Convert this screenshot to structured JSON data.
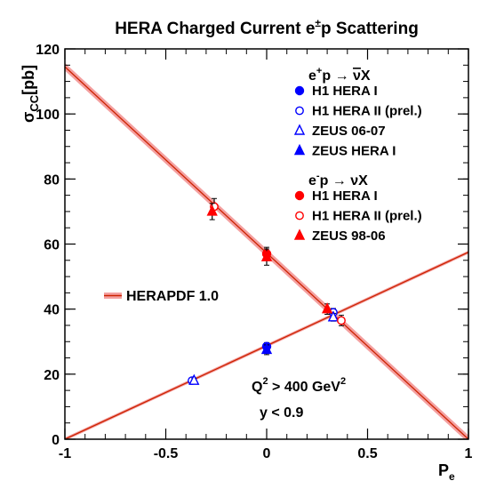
{
  "chart_data": {
    "type": "scatter",
    "title_main": "HERA Charged Current e",
    "title_sup": "±",
    "title_tail": "p Scattering",
    "xlabel": "P",
    "xlabel_sub": "e",
    "ylabel": "σ",
    "ylabel_sub": "CC",
    "ylabel_unit": "[pb]",
    "xlim": [
      -1,
      1
    ],
    "ylim": [
      0,
      120
    ],
    "x_ticks": [
      -1,
      -0.5,
      0,
      0.5,
      1
    ],
    "x_tick_labels": [
      "-1",
      "-0.5",
      "0",
      "0.5",
      "1"
    ],
    "y_ticks": [
      0,
      20,
      40,
      60,
      80,
      100,
      120
    ],
    "y_tick_labels": [
      "0",
      "20",
      "40",
      "60",
      "80",
      "100",
      "120"
    ],
    "grid": false,
    "legend_position": "top-right",
    "legend_groups": [
      {
        "header_pre": "e",
        "header_sup": "+",
        "header_post": "p → ",
        "header_nu": "ν",
        "header_nu_bar": true,
        "header_tail": "X"
      },
      {
        "header_pre": "e",
        "header_sup": "-",
        "header_post": "p → ",
        "header_nu": "ν",
        "header_nu_bar": false,
        "header_tail": "X"
      }
    ],
    "series": [
      {
        "name": "H1 HERA I",
        "group": 0,
        "color": "#0000ff",
        "marker": "circle-filled",
        "points": [
          {
            "x": 0.0,
            "y": 28.5,
            "err": 1.2
          }
        ]
      },
      {
        "name": "H1 HERA II (prel.)",
        "group": 0,
        "color": "#0000ff",
        "marker": "circle-open",
        "points": [
          {
            "x": -0.37,
            "y": 18.0,
            "err": 0.8
          },
          {
            "x": 0.33,
            "y": 39.0,
            "err": 1.2
          }
        ]
      },
      {
        "name": "ZEUS 06-07",
        "group": 0,
        "color": "#0000ff",
        "marker": "triangle-open",
        "points": [
          {
            "x": -0.36,
            "y": 18.0,
            "err": 0.8
          },
          {
            "x": 0.33,
            "y": 37.5,
            "err": 1.2
          }
        ]
      },
      {
        "name": "ZEUS HERA I",
        "group": 0,
        "color": "#0000ff",
        "marker": "triangle-filled",
        "points": [
          {
            "x": 0.0,
            "y": 27.5,
            "err": 1.5
          }
        ]
      },
      {
        "name": "H1 HERA I",
        "group": 1,
        "color": "#ff0000",
        "marker": "circle-filled",
        "points": [
          {
            "x": 0.0,
            "y": 57.0,
            "err": 2.0
          }
        ]
      },
      {
        "name": "H1 HERA II (prel.)",
        "group": 1,
        "color": "#ff0000",
        "marker": "circle-open",
        "points": [
          {
            "x": -0.26,
            "y": 71.5,
            "err": 2.5
          },
          {
            "x": 0.37,
            "y": 36.5,
            "err": 1.6
          }
        ]
      },
      {
        "name": "ZEUS 98-06",
        "group": 1,
        "color": "#ff0000",
        "marker": "triangle-filled",
        "points": [
          {
            "x": -0.27,
            "y": 70.0,
            "err": 2.5
          },
          {
            "x": 0.0,
            "y": 56.0,
            "err": 2.5
          },
          {
            "x": 0.3,
            "y": 40.0,
            "err": 1.6
          }
        ]
      }
    ],
    "predictions": [
      {
        "line_x": [
          -1,
          1
        ],
        "line_y": [
          0,
          57.5
        ],
        "band": 0.5
      },
      {
        "line_x": [
          -1,
          1
        ],
        "line_y": [
          114.5,
          0
        ],
        "band": 1.2
      }
    ],
    "curve_label": "HERAPDF 1.0",
    "annotation_q2_pre": "Q",
    "annotation_q2_sup1": "2",
    "annotation_q2_mid": " > 400 GeV",
    "annotation_q2_sup2": "2",
    "annotation_y": "y < 0.9",
    "colors": {
      "band": "#f4a0a0",
      "line": "#cc2200",
      "positron": "#0000ff",
      "electron": "#ff0000",
      "axis": "#000000"
    }
  }
}
